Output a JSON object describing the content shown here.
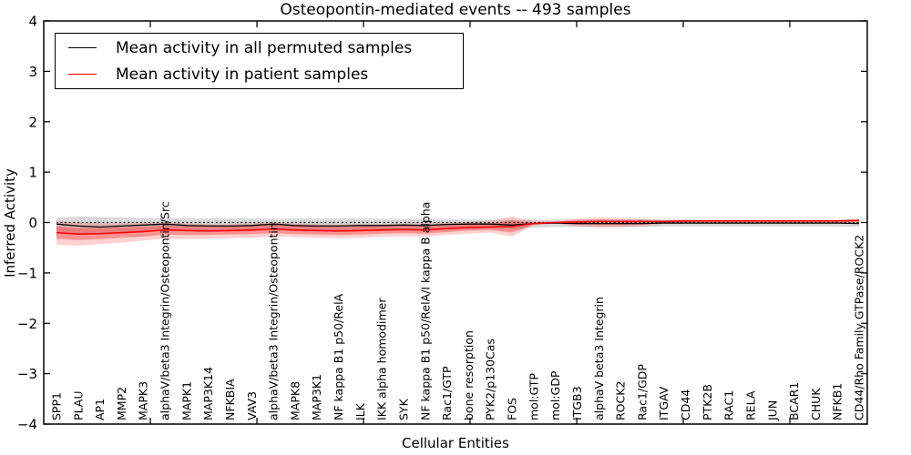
{
  "figure": {
    "title": "Osteopontin-mediated events -- 493 samples",
    "xlabel": "Cellular Entities",
    "ylabel": "Inferred Activity"
  },
  "legend": {
    "position": "upper left",
    "entries": [
      {
        "label": "Mean activity in all permuted samples",
        "color": "#000000"
      },
      {
        "label": "Mean activity in patient samples",
        "color": "#ff0000"
      }
    ]
  },
  "chart_data": {
    "type": "line",
    "title": "Osteopontin-mediated events -- 493 samples",
    "xlabel": "Cellular Entities",
    "ylabel": "Inferred Activity",
    "ylim": [
      -4,
      4
    ],
    "yticks": [
      -4,
      -3,
      -2,
      -1,
      0,
      1,
      2,
      3,
      4
    ],
    "grid": false,
    "legend_position": "upper left",
    "categories": [
      "SPP1",
      "PLAU",
      "AP1",
      "MMP2",
      "MAPK3",
      "alphaV/beta3 Integrin/Osteopontin/Src",
      "MAPK1",
      "MAP3K14",
      "NFKBIA",
      "VAV3",
      "alphaV/beta3 Integrin/Osteopontin",
      "MAPK8",
      "MAP3K1",
      "NF kappa B1 p50/RelA",
      "ILK",
      "IKK alpha homodimer",
      "SYK",
      "NF kappa B1 p50/RelA/I kappa B alpha",
      "Rac1/GTP",
      "bone resorption",
      "PYK2/p130Cas",
      "FOS",
      "mol:GTP",
      "mol:GDP",
      "ITGB3",
      "alphaV beta3 Integrin",
      "ROCK2",
      "Rac1/GDP",
      "ITGAV",
      "CD44",
      "PTK2B",
      "RAC1",
      "RELA",
      "JUN",
      "BCAR1",
      "CHUK",
      "NFKB1",
      "CD44/Rho Family GTPase/ROCK2"
    ],
    "series": [
      {
        "name": "Mean activity in all permuted samples",
        "color": "#000000",
        "line_style": "solid",
        "width": 1.3,
        "values": [
          -0.03,
          -0.07,
          -0.09,
          -0.07,
          -0.05,
          -0.03,
          -0.06,
          -0.07,
          -0.07,
          -0.06,
          -0.03,
          -0.06,
          -0.07,
          -0.07,
          -0.06,
          -0.06,
          -0.05,
          -0.06,
          -0.04,
          -0.03,
          -0.03,
          -0.05,
          -0.02,
          -0.01,
          -0.02,
          -0.02,
          -0.02,
          -0.02,
          -0.01,
          -0.01,
          -0.01,
          -0.01,
          -0.01,
          -0.01,
          -0.01,
          -0.01,
          -0.01,
          -0.02
        ]
      },
      {
        "name": "zero baseline",
        "color": "#000000",
        "line_style": "dotted",
        "width": 1.2,
        "values": [
          0,
          0,
          0,
          0,
          0,
          0,
          0,
          0,
          0,
          0,
          0,
          0,
          0,
          0,
          0,
          0,
          0,
          0,
          0,
          0,
          0,
          0,
          0,
          0,
          0,
          0,
          0,
          0,
          0,
          0,
          0,
          0,
          0,
          0,
          0,
          0,
          0,
          0
        ]
      },
      {
        "name": "Mean activity in patient samples",
        "color": "#ff0000",
        "line_style": "solid",
        "width": 1.5,
        "values": [
          -0.2,
          -0.23,
          -0.22,
          -0.2,
          -0.18,
          -0.15,
          -0.16,
          -0.17,
          -0.16,
          -0.15,
          -0.13,
          -0.15,
          -0.16,
          -0.17,
          -0.16,
          -0.15,
          -0.14,
          -0.15,
          -0.12,
          -0.1,
          -0.09,
          -0.08,
          -0.02,
          0.0,
          0.01,
          0.02,
          0.02,
          0.02,
          0.02,
          0.03,
          0.03,
          0.03,
          0.03,
          0.03,
          0.03,
          0.03,
          0.03,
          0.04
        ]
      }
    ],
    "bands": [
      {
        "name": "permuted sample range",
        "color": "#777777",
        "opacity": 0.28,
        "upper": [
          0.1,
          0.12,
          0.11,
          0.1,
          0.09,
          0.08,
          0.08,
          0.08,
          0.08,
          0.08,
          0.07,
          0.08,
          0.08,
          0.08,
          0.08,
          0.07,
          0.07,
          0.07,
          0.07,
          0.06,
          0.06,
          0.06,
          0.06,
          0.06,
          0.06,
          0.06,
          0.06,
          0.06,
          0.06,
          0.06,
          0.05,
          0.05,
          0.05,
          0.05,
          0.05,
          0.05,
          0.05,
          0.06
        ],
        "lower": [
          -0.18,
          -0.22,
          -0.23,
          -0.21,
          -0.18,
          -0.15,
          -0.17,
          -0.18,
          -0.18,
          -0.17,
          -0.14,
          -0.17,
          -0.18,
          -0.18,
          -0.17,
          -0.17,
          -0.16,
          -0.16,
          -0.15,
          -0.13,
          -0.12,
          -0.13,
          -0.1,
          -0.09,
          -0.09,
          -0.09,
          -0.09,
          -0.09,
          -0.08,
          -0.08,
          -0.08,
          -0.08,
          -0.08,
          -0.08,
          -0.08,
          -0.08,
          -0.08,
          -0.09
        ]
      },
      {
        "name": "patient sample range outer",
        "color": "#ff0000",
        "opacity": 0.18,
        "upper": [
          0.03,
          0.0,
          -0.02,
          -0.02,
          -0.01,
          0.01,
          -0.02,
          -0.03,
          -0.03,
          -0.02,
          0.01,
          -0.02,
          -0.03,
          -0.04,
          -0.03,
          -0.03,
          -0.02,
          -0.02,
          -0.01,
          0.01,
          0.03,
          0.12,
          0.02,
          0.02,
          0.08,
          0.1,
          0.09,
          0.08,
          0.05,
          0.05,
          0.05,
          0.05,
          0.05,
          0.05,
          0.04,
          0.05,
          0.05,
          0.08
        ],
        "lower": [
          -0.44,
          -0.46,
          -0.43,
          -0.4,
          -0.36,
          -0.32,
          -0.33,
          -0.32,
          -0.31,
          -0.3,
          -0.28,
          -0.29,
          -0.3,
          -0.31,
          -0.3,
          -0.28,
          -0.27,
          -0.28,
          -0.25,
          -0.22,
          -0.2,
          -0.28,
          -0.05,
          -0.02,
          -0.08,
          -0.1,
          -0.09,
          -0.08,
          -0.03,
          -0.02,
          -0.02,
          -0.02,
          -0.02,
          -0.02,
          -0.02,
          -0.02,
          -0.02,
          -0.03
        ]
      },
      {
        "name": "patient sample range inner",
        "color": "#ff0000",
        "opacity": 0.3,
        "upper": [
          -0.08,
          -0.11,
          -0.11,
          -0.1,
          -0.08,
          -0.06,
          -0.08,
          -0.09,
          -0.08,
          -0.07,
          -0.05,
          -0.07,
          -0.08,
          -0.09,
          -0.08,
          -0.08,
          -0.07,
          -0.08,
          -0.06,
          -0.04,
          -0.02,
          0.04,
          0.0,
          0.01,
          0.04,
          0.06,
          0.05,
          0.05,
          0.03,
          0.04,
          0.04,
          0.04,
          0.04,
          0.04,
          0.03,
          0.04,
          0.04,
          0.06
        ],
        "lower": [
          -0.32,
          -0.35,
          -0.33,
          -0.3,
          -0.28,
          -0.24,
          -0.25,
          -0.25,
          -0.24,
          -0.23,
          -0.21,
          -0.23,
          -0.24,
          -0.25,
          -0.24,
          -0.22,
          -0.21,
          -0.22,
          -0.19,
          -0.16,
          -0.15,
          -0.2,
          -0.04,
          -0.01,
          -0.04,
          -0.05,
          -0.05,
          -0.04,
          -0.01,
          0.01,
          0.01,
          0.01,
          0.01,
          0.01,
          0.01,
          0.01,
          0.01,
          0.02
        ]
      }
    ]
  }
}
